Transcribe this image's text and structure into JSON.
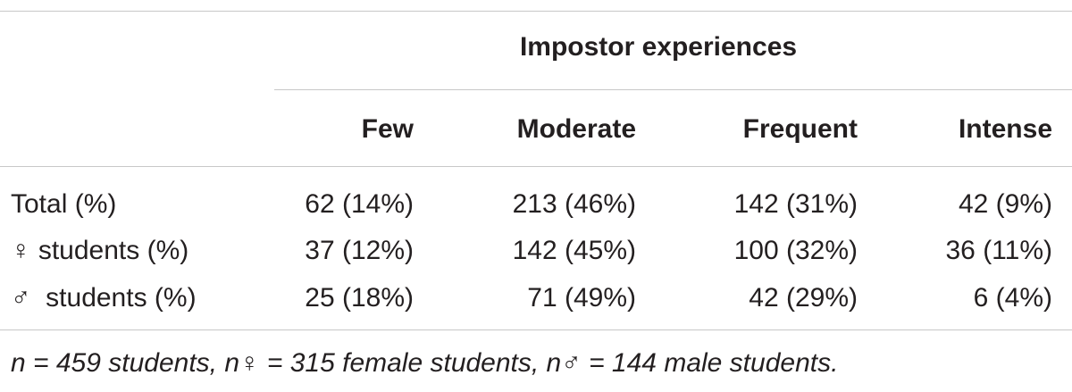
{
  "table": {
    "group_header": "Impostor experiences",
    "columns": [
      "Few",
      "Moderate",
      "Frequent",
      "Intense"
    ],
    "rows": [
      {
        "label": "Total (%)",
        "cells": [
          "62 (14%)",
          "213 (46%)",
          "142 (31%)",
          "42 (9%)"
        ]
      },
      {
        "label": "♀ students (%)",
        "cells": [
          "37 (12%)",
          "142 (45%)",
          "100 (32%)",
          "36 (11%)"
        ]
      },
      {
        "label": "♂  students (%)",
        "cells": [
          "25 (18%)",
          "71 (49%)",
          "42 (29%)",
          "6 (4%)"
        ]
      }
    ],
    "note": "n = 459 students, n♀ = 315 female students, n♂ = 144 male students."
  }
}
